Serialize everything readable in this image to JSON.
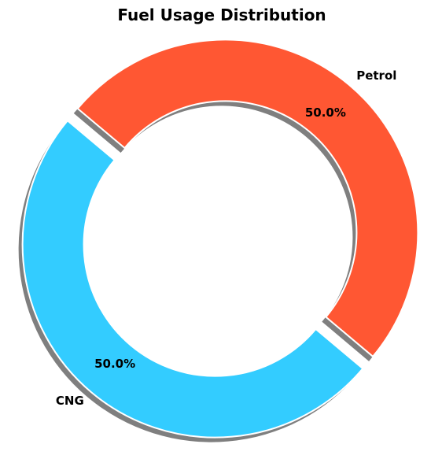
{
  "chart_data": {
    "type": "pie",
    "variant": "donut",
    "title": "Fuel Usage Distribution",
    "start_angle_deg": 140,
    "shadow": true,
    "slices": [
      {
        "label": "CNG",
        "value": 50.0,
        "pct_label": "50.0%",
        "color": "#33ccff",
        "exploded": true
      },
      {
        "label": "Petrol",
        "value": 50.0,
        "pct_label": "50.0%",
        "color": "#ff5733",
        "exploded": true
      }
    ]
  }
}
